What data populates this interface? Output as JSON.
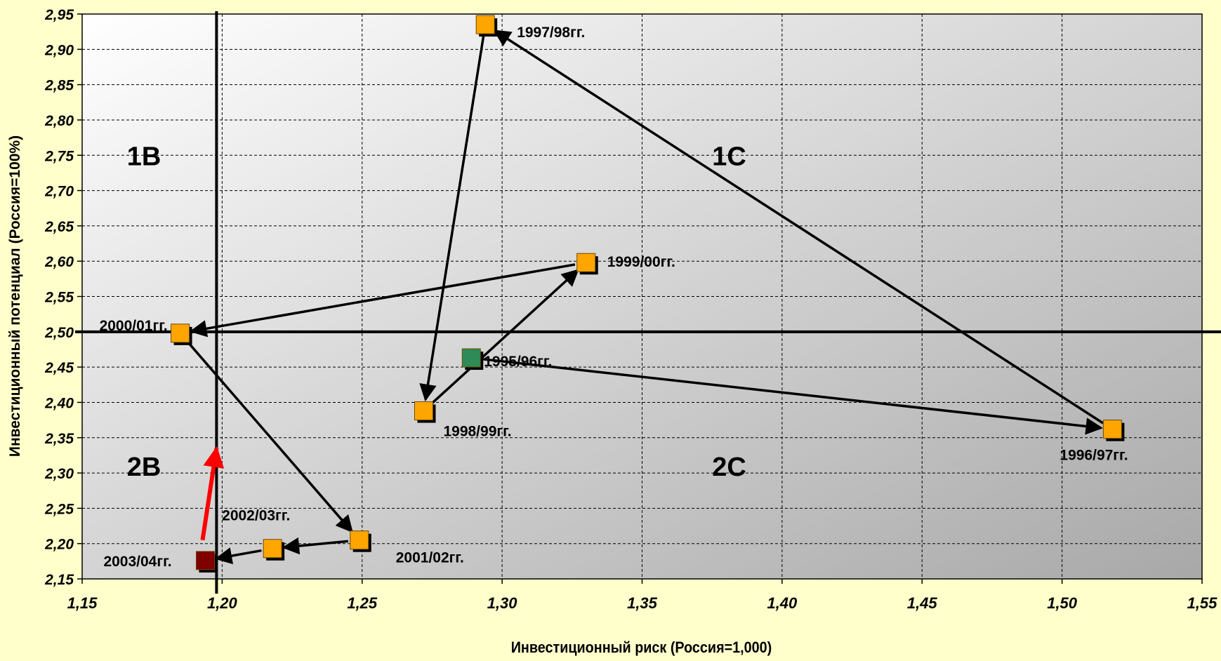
{
  "chart_data": {
    "type": "scatter",
    "title": "",
    "xlabel": "Инвестиционный риск (Россия=1,000)",
    "ylabel": "Инвестиционный потенциал (Россия=100%)",
    "xlim": [
      1.15,
      1.55
    ],
    "ylim": [
      2.15,
      2.95
    ],
    "x_ticks": [
      "1,15",
      "1,20",
      "1,25",
      "1,30",
      "1,35",
      "1,40",
      "1,45",
      "1,50",
      "1,55"
    ],
    "y_ticks": [
      "2,95",
      "2,90",
      "2,85",
      "2,80",
      "2,75",
      "2,70",
      "2,65",
      "2,60",
      "2,55",
      "2,50",
      "2,45",
      "2,40",
      "2,35",
      "2,30",
      "2,25",
      "2,20",
      "2,15"
    ],
    "grid": true,
    "reference_lines": {
      "x": 1.198,
      "y": 2.5
    },
    "quadrant_labels": [
      {
        "text": "1B",
        "x": 1.166,
        "y": 2.75
      },
      {
        "text": "1C",
        "x": 1.375,
        "y": 2.75
      },
      {
        "text": "2B",
        "x": 1.166,
        "y": 2.31
      },
      {
        "text": "2C",
        "x": 1.375,
        "y": 2.31
      }
    ],
    "points": [
      {
        "label": "1995/96гг.",
        "x": 1.289,
        "y": 2.463,
        "color": "#2e8b57"
      },
      {
        "label": "1996/97гг.",
        "x": 1.518,
        "y": 2.362,
        "color": "#ffa500"
      },
      {
        "label": "1997/98гг.",
        "x": 1.294,
        "y": 2.935,
        "color": "#ffa500"
      },
      {
        "label": "1998/99гг.",
        "x": 1.272,
        "y": 2.388,
        "color": "#ffa500"
      },
      {
        "label": "1999/00гг.",
        "x": 1.33,
        "y": 2.598,
        "color": "#ffa500"
      },
      {
        "label": "2000/01гг.",
        "x": 1.185,
        "y": 2.498,
        "color": "#ffa500"
      },
      {
        "label": "2001/02гг.",
        "x": 1.249,
        "y": 2.205,
        "color": "#ffa500"
      },
      {
        "label": "2002/03гг.",
        "x": 1.218,
        "y": 2.193,
        "color": "#ffa500"
      },
      {
        "label": "2003/04гг.",
        "x": 1.194,
        "y": 2.176,
        "color": "#800000"
      }
    ],
    "trajectory": [
      {
        "from": "1995/96гг.",
        "to": "1996/97гг."
      },
      {
        "from": "1996/97гг.",
        "to": "1997/98гг."
      },
      {
        "from": "1997/98гг.",
        "to": "1998/99гг."
      },
      {
        "from": "1998/99гг.",
        "to": "1999/00гг."
      },
      {
        "from": "1999/00гг.",
        "to": "2000/01гг."
      },
      {
        "from": "2000/01гг.",
        "to": "2001/02гг."
      },
      {
        "from": "2001/02гг.",
        "to": "2002/03гг."
      },
      {
        "from": "2002/03гг.",
        "to": "2003/04гг."
      }
    ],
    "trend_arrow": {
      "from": [
        1.193,
        2.205
      ],
      "to": [
        1.198,
        2.335
      ],
      "color": "#ff0000"
    }
  }
}
